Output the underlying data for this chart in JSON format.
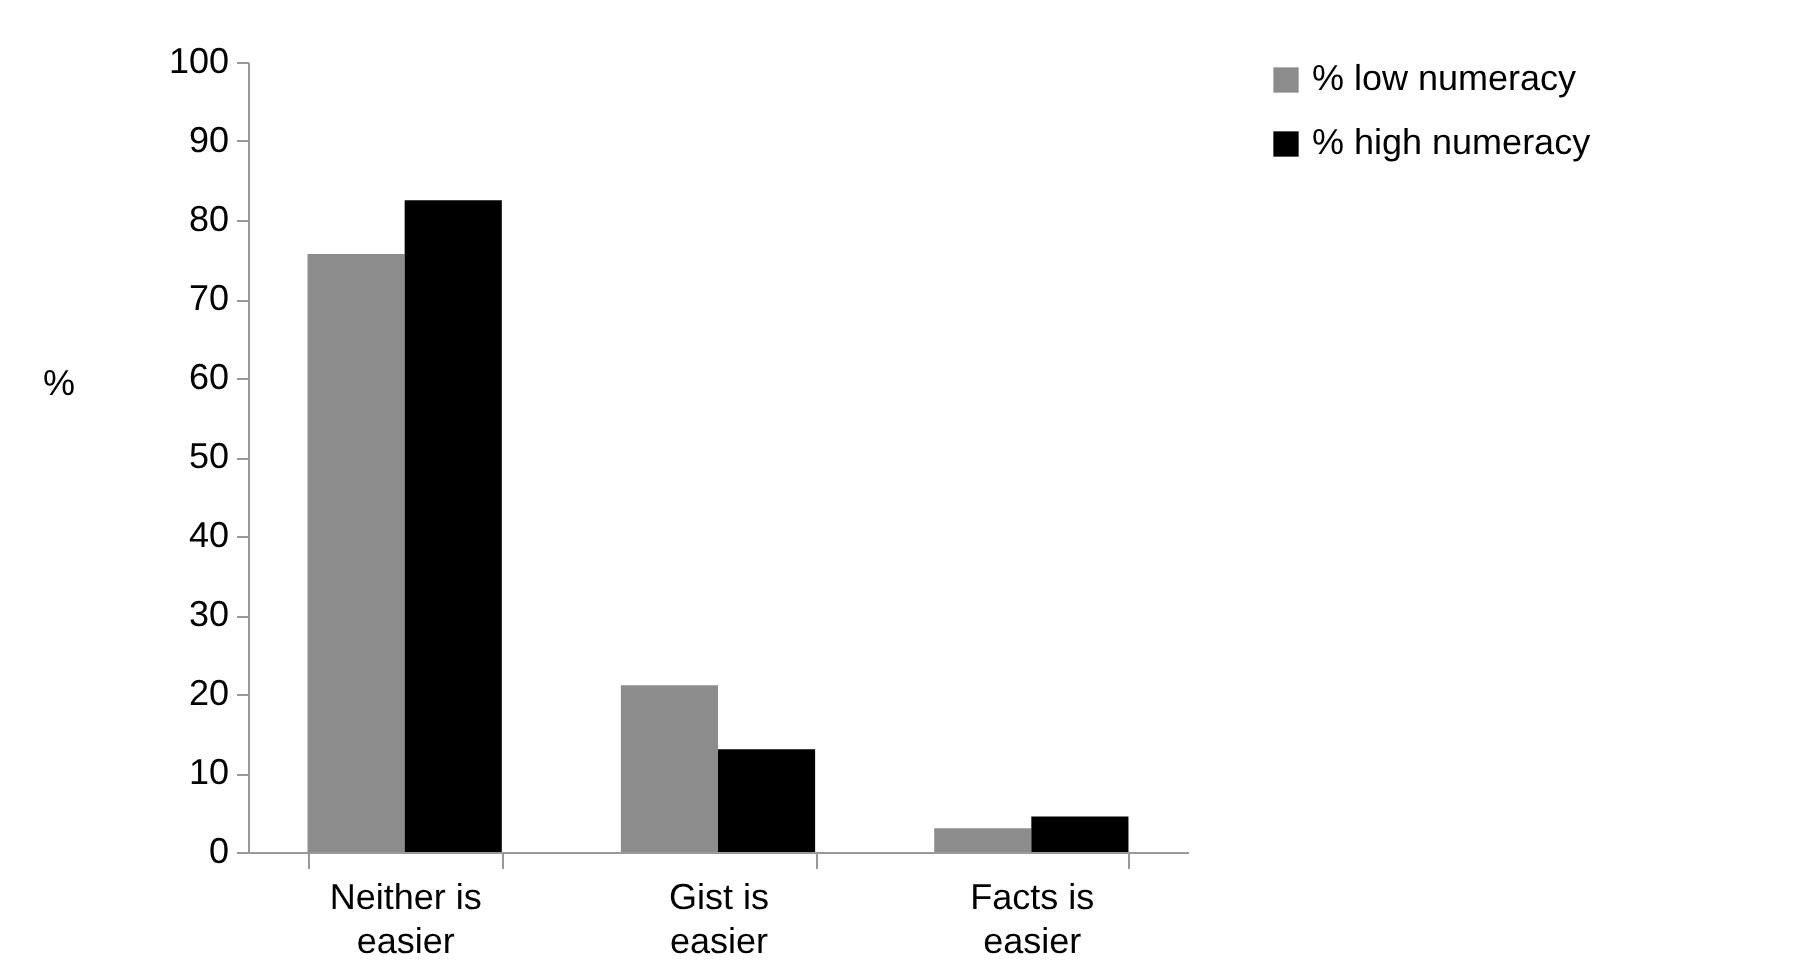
{
  "chart_data": {
    "type": "bar",
    "ylabel": "%",
    "categories": [
      "Neither is easier",
      "Gist is easier",
      "Facts is easier"
    ],
    "series": [
      {
        "name": "% low numeracy",
        "color": "#8c8c8c",
        "values": [
          75.7,
          21.1,
          3
        ]
      },
      {
        "name": "% high numeracy",
        "color": "#000000",
        "values": [
          82.5,
          13,
          4.5
        ]
      }
    ],
    "ylim": [
      0,
      100
    ],
    "yticks": [
      0,
      10,
      20,
      30,
      40,
      50,
      60,
      70,
      80,
      90,
      100
    ],
    "grid": false,
    "legend": "right"
  }
}
